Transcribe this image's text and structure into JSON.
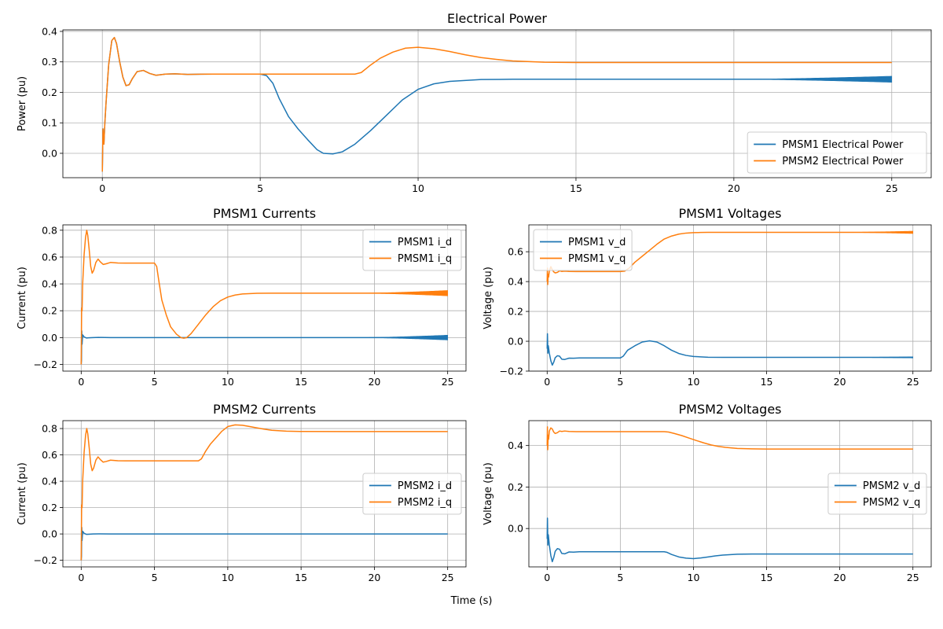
{
  "figure": {
    "shared_xlabel": "Time (s)"
  },
  "chart_data": [
    {
      "id": "p1",
      "type": "line",
      "title": "Electrical Power",
      "xlabel": "",
      "ylabel": "Power (pu)",
      "xlim": [
        -1.25,
        26.25
      ],
      "ylim": [
        -0.08,
        0.405
      ],
      "xticks": [
        0,
        5,
        10,
        15,
        20,
        25
      ],
      "yticks": [
        0.0,
        0.1,
        0.2,
        0.3,
        0.4
      ],
      "ytick_format": "1",
      "grid": true,
      "legend": "lower-right",
      "series": [
        {
          "name": "PMSM1 Electrical Power",
          "color": "#1f77b4",
          "x": [
            0,
            0.02,
            0.05,
            0.08,
            0.12,
            0.2,
            0.3,
            0.38,
            0.45,
            0.55,
            0.65,
            0.75,
            0.85,
            0.95,
            1.1,
            1.3,
            1.5,
            1.7,
            2.0,
            2.3,
            2.7,
            3.5,
            4.5,
            5.0,
            5.2,
            5.4,
            5.6,
            5.9,
            6.2,
            6.5,
            6.8,
            7.0,
            7.3,
            7.6,
            8.0,
            8.5,
            9.0,
            9.5,
            10.0,
            10.5,
            11.0,
            12.0,
            13.0,
            15.0,
            18.0,
            22.0,
            25.0
          ],
          "y": [
            -0.06,
            0.08,
            0.03,
            0.1,
            0.17,
            0.29,
            0.37,
            0.38,
            0.36,
            0.3,
            0.25,
            0.222,
            0.225,
            0.245,
            0.268,
            0.272,
            0.262,
            0.256,
            0.26,
            0.261,
            0.259,
            0.26,
            0.26,
            0.26,
            0.255,
            0.23,
            0.18,
            0.12,
            0.08,
            0.045,
            0.012,
            0.0,
            -0.002,
            0.005,
            0.03,
            0.075,
            0.125,
            0.175,
            0.21,
            0.228,
            0.236,
            0.242,
            0.243,
            0.243,
            0.243,
            0.243,
            0.243
          ],
          "oscillation": {
            "from": 20,
            "to": 25,
            "max_amplitude": 0.01
          }
        },
        {
          "name": "PMSM2 Electrical Power",
          "color": "#ff7f0e",
          "x": [
            0,
            0.02,
            0.05,
            0.08,
            0.12,
            0.2,
            0.3,
            0.38,
            0.45,
            0.55,
            0.65,
            0.75,
            0.85,
            0.95,
            1.1,
            1.3,
            1.5,
            1.7,
            2.0,
            2.3,
            2.7,
            3.5,
            5.0,
            8.0,
            8.2,
            8.5,
            8.8,
            9.2,
            9.6,
            10.0,
            10.5,
            11.0,
            11.5,
            12.0,
            12.5,
            13.0,
            14.0,
            15.0,
            18.0,
            25.0
          ],
          "y": [
            -0.06,
            0.08,
            0.03,
            0.1,
            0.17,
            0.29,
            0.37,
            0.38,
            0.36,
            0.3,
            0.25,
            0.222,
            0.225,
            0.245,
            0.268,
            0.272,
            0.262,
            0.256,
            0.26,
            0.261,
            0.259,
            0.26,
            0.26,
            0.26,
            0.265,
            0.29,
            0.312,
            0.332,
            0.345,
            0.348,
            0.343,
            0.334,
            0.323,
            0.314,
            0.308,
            0.303,
            0.299,
            0.298,
            0.298,
            0.298
          ]
        }
      ]
    },
    {
      "id": "p2",
      "type": "line",
      "title": "PMSM1 Currents",
      "xlabel": "",
      "ylabel": "Current (pu)",
      "xlim": [
        -1.25,
        26.25
      ],
      "ylim": [
        -0.25,
        0.84
      ],
      "xticks": [
        0,
        5,
        10,
        15,
        20,
        25
      ],
      "yticks": [
        -0.2,
        0.0,
        0.2,
        0.4,
        0.6,
        0.8
      ],
      "ytick_format": "1",
      "grid": true,
      "legend": "upper-right",
      "series": [
        {
          "name": "PMSM1 i_d",
          "color": "#1f77b4",
          "x": [
            0,
            0.02,
            0.04,
            0.06,
            0.1,
            0.2,
            0.35,
            0.5,
            0.8,
            1.2,
            2.0,
            5.0,
            10.0,
            15.0,
            20.0,
            25.0
          ],
          "y": [
            -0.2,
            -0.17,
            0.05,
            -0.05,
            0.02,
            0.005,
            -0.003,
            -0.002,
            0.0,
            0.001,
            0.0,
            0.0,
            0.0,
            0.0,
            0.0,
            0.0
          ],
          "oscillation": {
            "from": 19,
            "to": 25,
            "max_amplitude": 0.018
          }
        },
        {
          "name": "PMSM1 i_q",
          "color": "#ff7f0e",
          "x": [
            0,
            0.03,
            0.06,
            0.1,
            0.2,
            0.3,
            0.38,
            0.45,
            0.55,
            0.65,
            0.75,
            0.85,
            1.0,
            1.15,
            1.3,
            1.5,
            1.7,
            2.0,
            2.5,
            3.0,
            4.0,
            5.0,
            5.15,
            5.3,
            5.5,
            5.8,
            6.1,
            6.5,
            6.8,
            7.0,
            7.2,
            7.5,
            8.0,
            8.5,
            9.0,
            9.5,
            10.0,
            10.5,
            11.0,
            12.0,
            13.0,
            15.0,
            18.0,
            22.0,
            25.0
          ],
          "y": [
            -0.2,
            0.22,
            0.2,
            0.4,
            0.62,
            0.75,
            0.8,
            0.76,
            0.65,
            0.53,
            0.48,
            0.5,
            0.56,
            0.585,
            0.565,
            0.545,
            0.55,
            0.56,
            0.556,
            0.555,
            0.555,
            0.555,
            0.53,
            0.42,
            0.28,
            0.17,
            0.08,
            0.025,
            0.0,
            -0.005,
            0.0,
            0.03,
            0.1,
            0.17,
            0.23,
            0.275,
            0.302,
            0.317,
            0.325,
            0.33,
            0.331,
            0.331,
            0.331,
            0.331,
            0.331
          ],
          "oscillation": {
            "from": 19,
            "to": 25,
            "max_amplitude": 0.02
          }
        }
      ]
    },
    {
      "id": "p3",
      "type": "line",
      "title": "PMSM1 Voltages",
      "xlabel": "",
      "ylabel": "Voltage (pu)",
      "xlim": [
        -1.25,
        26.25
      ],
      "ylim": [
        -0.2,
        0.78
      ],
      "xticks": [
        0,
        5,
        10,
        15,
        20,
        25
      ],
      "yticks": [
        -0.2,
        0.0,
        0.2,
        0.4,
        0.6
      ],
      "ytick_format": "1",
      "grid": true,
      "legend": "upper-left",
      "series": [
        {
          "name": "PMSM1 v_d",
          "color": "#1f77b4",
          "x": [
            0,
            0.02,
            0.05,
            0.08,
            0.15,
            0.25,
            0.35,
            0.45,
            0.55,
            0.7,
            0.85,
            1.0,
            1.2,
            1.5,
            1.8,
            2.2,
            3.0,
            4.0,
            5.0,
            5.2,
            5.5,
            6.0,
            6.5,
            7.0,
            7.5,
            8.0,
            8.5,
            9.0,
            9.5,
            10.0,
            11.0,
            12.0,
            15.0,
            20.0,
            25.0
          ],
          "y": [
            -0.05,
            0.05,
            -0.08,
            -0.03,
            -0.08,
            -0.13,
            -0.16,
            -0.14,
            -0.11,
            -0.097,
            -0.1,
            -0.12,
            -0.122,
            -0.113,
            -0.114,
            -0.112,
            -0.112,
            -0.112,
            -0.112,
            -0.1,
            -0.06,
            -0.03,
            -0.005,
            0.003,
            -0.005,
            -0.03,
            -0.06,
            -0.082,
            -0.095,
            -0.102,
            -0.107,
            -0.108,
            -0.108,
            -0.108,
            -0.108
          ],
          "oscillation": {
            "from": 20,
            "to": 25,
            "max_amplitude": 0.004
          }
        },
        {
          "name": "PMSM1 v_q",
          "color": "#ff7f0e",
          "x": [
            0,
            0.02,
            0.04,
            0.07,
            0.1,
            0.15,
            0.25,
            0.35,
            0.45,
            0.55,
            0.7,
            0.85,
            1.0,
            1.2,
            1.5,
            2.0,
            3.0,
            4.0,
            5.0,
            5.3,
            5.6,
            6.0,
            6.5,
            7.0,
            7.5,
            8.0,
            8.5,
            9.0,
            9.5,
            10.0,
            10.5,
            11.0,
            12.0,
            15.0,
            20.0,
            25.0
          ],
          "y": [
            0.4,
            0.49,
            0.38,
            0.45,
            0.43,
            0.47,
            0.5,
            0.48,
            0.465,
            0.458,
            0.462,
            0.472,
            0.468,
            0.47,
            0.468,
            0.467,
            0.467,
            0.467,
            0.467,
            0.47,
            0.49,
            0.53,
            0.57,
            0.61,
            0.65,
            0.685,
            0.705,
            0.718,
            0.725,
            0.728,
            0.729,
            0.73,
            0.73,
            0.73,
            0.73,
            0.73
          ],
          "oscillation": {
            "from": 20,
            "to": 25,
            "max_amplitude": 0.008
          }
        }
      ]
    },
    {
      "id": "p4",
      "type": "line",
      "title": "PMSM2 Currents",
      "xlabel": "",
      "ylabel": "Current (pu)",
      "xlim": [
        -1.25,
        26.25
      ],
      "ylim": [
        -0.25,
        0.86
      ],
      "xticks": [
        0,
        5,
        10,
        15,
        20,
        25
      ],
      "yticks": [
        -0.2,
        0.0,
        0.2,
        0.4,
        0.6,
        0.8
      ],
      "ytick_format": "1",
      "grid": true,
      "legend": "center-right",
      "series": [
        {
          "name": "PMSM2 i_d",
          "color": "#1f77b4",
          "x": [
            0,
            0.02,
            0.04,
            0.06,
            0.1,
            0.2,
            0.35,
            0.5,
            0.8,
            1.2,
            2.0,
            5.0,
            10.0,
            15.0,
            20.0,
            25.0
          ],
          "y": [
            -0.2,
            -0.17,
            0.05,
            -0.05,
            0.02,
            0.005,
            -0.003,
            -0.002,
            0.0,
            0.001,
            0.0,
            0.0,
            0.0,
            0.0,
            0.0,
            0.0
          ]
        },
        {
          "name": "PMSM2 i_q",
          "color": "#ff7f0e",
          "x": [
            0,
            0.03,
            0.06,
            0.1,
            0.2,
            0.3,
            0.38,
            0.45,
            0.55,
            0.65,
            0.75,
            0.85,
            1.0,
            1.15,
            1.3,
            1.5,
            1.7,
            2.0,
            2.5,
            3.0,
            5.0,
            8.0,
            8.2,
            8.5,
            8.8,
            9.2,
            9.6,
            10.0,
            10.5,
            11.0,
            11.5,
            12.0,
            12.5,
            13.0,
            14.0,
            15.0,
            18.0,
            25.0
          ],
          "y": [
            -0.2,
            0.22,
            0.2,
            0.4,
            0.62,
            0.75,
            0.8,
            0.76,
            0.65,
            0.53,
            0.48,
            0.5,
            0.56,
            0.585,
            0.565,
            0.545,
            0.55,
            0.56,
            0.556,
            0.555,
            0.555,
            0.555,
            0.57,
            0.63,
            0.68,
            0.73,
            0.78,
            0.815,
            0.828,
            0.825,
            0.815,
            0.805,
            0.795,
            0.787,
            0.78,
            0.778,
            0.777,
            0.777
          ]
        }
      ]
    },
    {
      "id": "p5",
      "type": "line",
      "title": "PMSM2 Voltages",
      "xlabel": "",
      "ylabel": "Voltage (pu)",
      "xlim": [
        -1.25,
        26.25
      ],
      "ylim": [
        -0.185,
        0.52
      ],
      "xticks": [
        0,
        5,
        10,
        15,
        20,
        25
      ],
      "yticks": [
        0.0,
        0.2,
        0.4
      ],
      "ytick_format": "1",
      "grid": true,
      "legend": "center-right",
      "series": [
        {
          "name": "PMSM2 v_d",
          "color": "#1f77b4",
          "x": [
            0,
            0.02,
            0.05,
            0.08,
            0.15,
            0.25,
            0.35,
            0.45,
            0.55,
            0.7,
            0.85,
            1.0,
            1.2,
            1.5,
            1.8,
            2.2,
            3.0,
            5.0,
            8.0,
            8.2,
            8.5,
            9.0,
            9.5,
            10.0,
            10.5,
            11.0,
            11.5,
            12.0,
            13.0,
            14.0,
            15.0,
            18.0,
            25.0
          ],
          "y": [
            -0.05,
            0.05,
            -0.08,
            -0.03,
            -0.08,
            -0.13,
            -0.16,
            -0.14,
            -0.11,
            -0.097,
            -0.1,
            -0.12,
            -0.122,
            -0.113,
            -0.114,
            -0.112,
            -0.112,
            -0.112,
            -0.112,
            -0.115,
            -0.125,
            -0.137,
            -0.143,
            -0.145,
            -0.142,
            -0.137,
            -0.132,
            -0.128,
            -0.124,
            -0.123,
            -0.123,
            -0.123,
            -0.123
          ]
        },
        {
          "name": "PMSM2 v_q",
          "color": "#ff7f0e",
          "x": [
            0,
            0.02,
            0.04,
            0.07,
            0.1,
            0.15,
            0.25,
            0.35,
            0.45,
            0.55,
            0.7,
            0.85,
            1.0,
            1.2,
            1.5,
            2.0,
            3.0,
            5.0,
            8.0,
            8.3,
            8.7,
            9.2,
            9.7,
            10.2,
            10.7,
            11.2,
            11.7,
            12.2,
            13.0,
            14.0,
            15.0,
            18.0,
            25.0
          ],
          "y": [
            0.4,
            0.49,
            0.38,
            0.45,
            0.43,
            0.47,
            0.485,
            0.48,
            0.465,
            0.458,
            0.462,
            0.47,
            0.468,
            0.47,
            0.468,
            0.467,
            0.467,
            0.467,
            0.467,
            0.465,
            0.458,
            0.448,
            0.436,
            0.424,
            0.413,
            0.403,
            0.396,
            0.391,
            0.386,
            0.384,
            0.383,
            0.383,
            0.383
          ]
        }
      ]
    }
  ]
}
